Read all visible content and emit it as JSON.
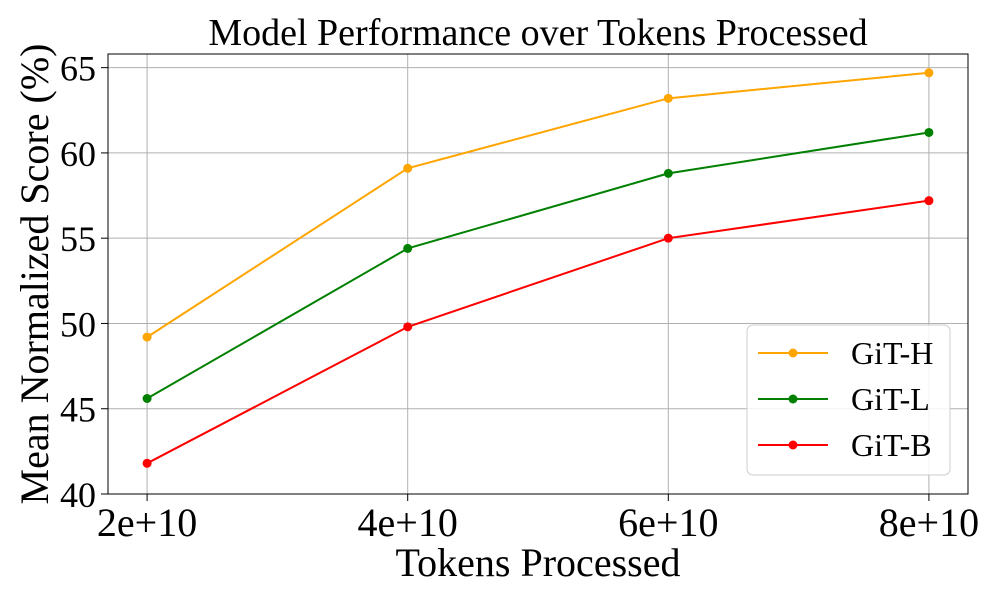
{
  "chart_data": {
    "type": "line",
    "title": "Model Performance over Tokens Processed",
    "xlabel": "Tokens Processed",
    "ylabel": "Mean Normalized Score (%)",
    "x": [
      20000000000,
      40000000000,
      60000000000,
      80000000000
    ],
    "x_tick_labels": [
      "2e+10",
      "4e+10",
      "6e+10",
      "8e+10"
    ],
    "y_ticks": [
      40,
      45,
      50,
      55,
      60,
      65
    ],
    "y_tick_labels": [
      "40",
      "45",
      "50",
      "55",
      "60",
      "65"
    ],
    "xlim": [
      17000000000,
      83000000000
    ],
    "ylim": [
      40,
      65.8
    ],
    "grid": true,
    "legend_position": "lower-right",
    "series": [
      {
        "name": "GiT-H",
        "color": "#FFA500",
        "values": [
          49.2,
          59.1,
          63.2,
          64.7
        ]
      },
      {
        "name": "GiT-L",
        "color": "#008000",
        "values": [
          45.6,
          54.4,
          58.8,
          61.2
        ]
      },
      {
        "name": "GiT-B",
        "color": "#FF0000",
        "values": [
          41.8,
          49.8,
          55.0,
          57.2
        ]
      }
    ]
  }
}
